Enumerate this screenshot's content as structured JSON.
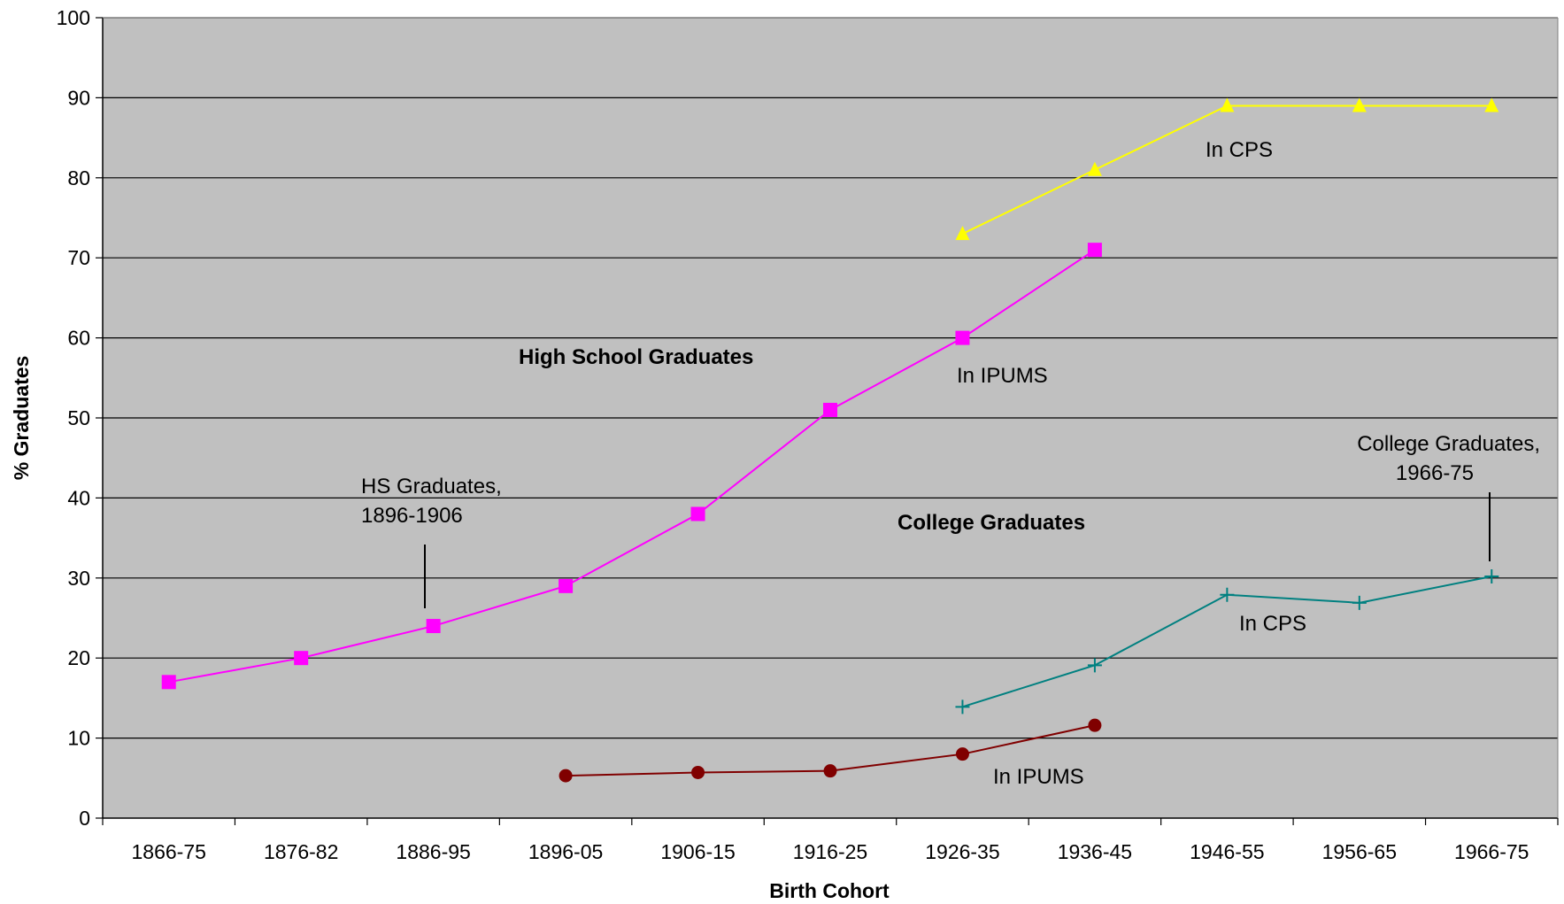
{
  "chart_data": {
    "type": "line",
    "title": "",
    "xlabel": "Birth Cohort",
    "ylabel": "% Graduates",
    "ylim": [
      0,
      100
    ],
    "yticks": [
      "0",
      "10",
      "20",
      "30",
      "40",
      "50",
      "60",
      "70",
      "80",
      "90",
      "100"
    ],
    "grid": "horizontal",
    "legend": "none",
    "categories": [
      "1866-75",
      "1876-82",
      "1886-95",
      "1896-05",
      "1906-15",
      "1916-25",
      "1926-35",
      "1936-45",
      "1946-55",
      "1956-65",
      "1966-75"
    ],
    "series": [
      {
        "values": [
          17,
          20,
          24,
          29,
          38,
          51,
          60,
          71,
          null,
          null,
          null
        ],
        "color": "#ff00ff",
        "marker": "square"
      },
      {
        "values": [
          null,
          null,
          null,
          null,
          null,
          null,
          73,
          81,
          89,
          89,
          89
        ],
        "color": "#ffff00",
        "marker": "triangle"
      },
      {
        "values": [
          null,
          null,
          null,
          5.3,
          5.7,
          5.9,
          8,
          11.6,
          null,
          null,
          null
        ],
        "color": "#800000",
        "marker": "circle"
      },
      {
        "values": [
          null,
          null,
          null,
          null,
          null,
          null,
          13.9,
          19.1,
          27.9,
          26.9,
          30.2
        ],
        "color": "#008080",
        "marker": "plus"
      }
    ],
    "annotations": [
      {
        "id": "hs-title",
        "text": "High School Graduates",
        "bold": true
      },
      {
        "id": "college-title",
        "text": "College Graduates",
        "bold": true
      },
      {
        "id": "hs-ipums",
        "text": "In IPUMS"
      },
      {
        "id": "hs-cps",
        "text": "In CPS"
      },
      {
        "id": "college-ipums",
        "text": "In IPUMS"
      },
      {
        "id": "college-cps",
        "text": "In CPS"
      },
      {
        "id": "hs-callout-1",
        "text": "HS Graduates,"
      },
      {
        "id": "hs-callout-2",
        "text": "1896-1906"
      },
      {
        "id": "college-callout-1",
        "text": "College Graduates,"
      },
      {
        "id": "college-callout-2",
        "text": "1966-75"
      }
    ]
  },
  "colors": {
    "plot_background": "#c0c0c0",
    "gridline": "#000000"
  }
}
